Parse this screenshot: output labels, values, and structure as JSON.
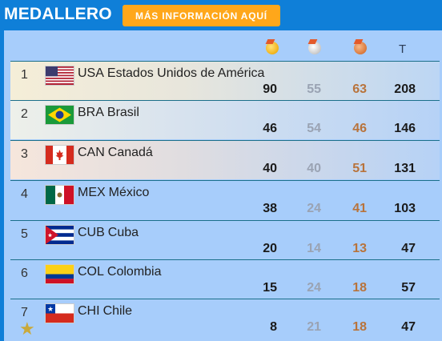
{
  "header": {
    "title": "MEDALLERO",
    "info_button": "MÁS INFORMACIÓN AQUÍ"
  },
  "table": {
    "total_header": "T",
    "rows": [
      {
        "rank": "1",
        "code": "USA",
        "name": "Estados Unidos de América",
        "gold": "90",
        "silver": "55",
        "bronze": "63",
        "total": "208"
      },
      {
        "rank": "2",
        "code": "BRA",
        "name": "Brasil",
        "gold": "46",
        "silver": "54",
        "bronze": "46",
        "total": "146"
      },
      {
        "rank": "3",
        "code": "CAN",
        "name": "Canadá",
        "gold": "40",
        "silver": "40",
        "bronze": "51",
        "total": "131"
      },
      {
        "rank": "4",
        "code": "MEX",
        "name": "México",
        "gold": "38",
        "silver": "24",
        "bronze": "41",
        "total": "103"
      },
      {
        "rank": "5",
        "code": "CUB",
        "name": "Cuba",
        "gold": "20",
        "silver": "14",
        "bronze": "13",
        "total": "47"
      },
      {
        "rank": "6",
        "code": "COL",
        "name": "Colombia",
        "gold": "15",
        "silver": "24",
        "bronze": "18",
        "total": "57"
      },
      {
        "rank": "7",
        "code": "CHI",
        "name": "Chile",
        "gold": "8",
        "silver": "21",
        "bronze": "18",
        "total": "47"
      }
    ]
  },
  "icons": {
    "gold": "gold-medal-icon",
    "silver": "silver-medal-icon",
    "bronze": "bronze-medal-icon",
    "star": "star-icon"
  },
  "colors": {
    "header_bg": "#0f7fd8",
    "button_bg": "#ffa71a",
    "panel_bg": "#a7cdfb"
  }
}
